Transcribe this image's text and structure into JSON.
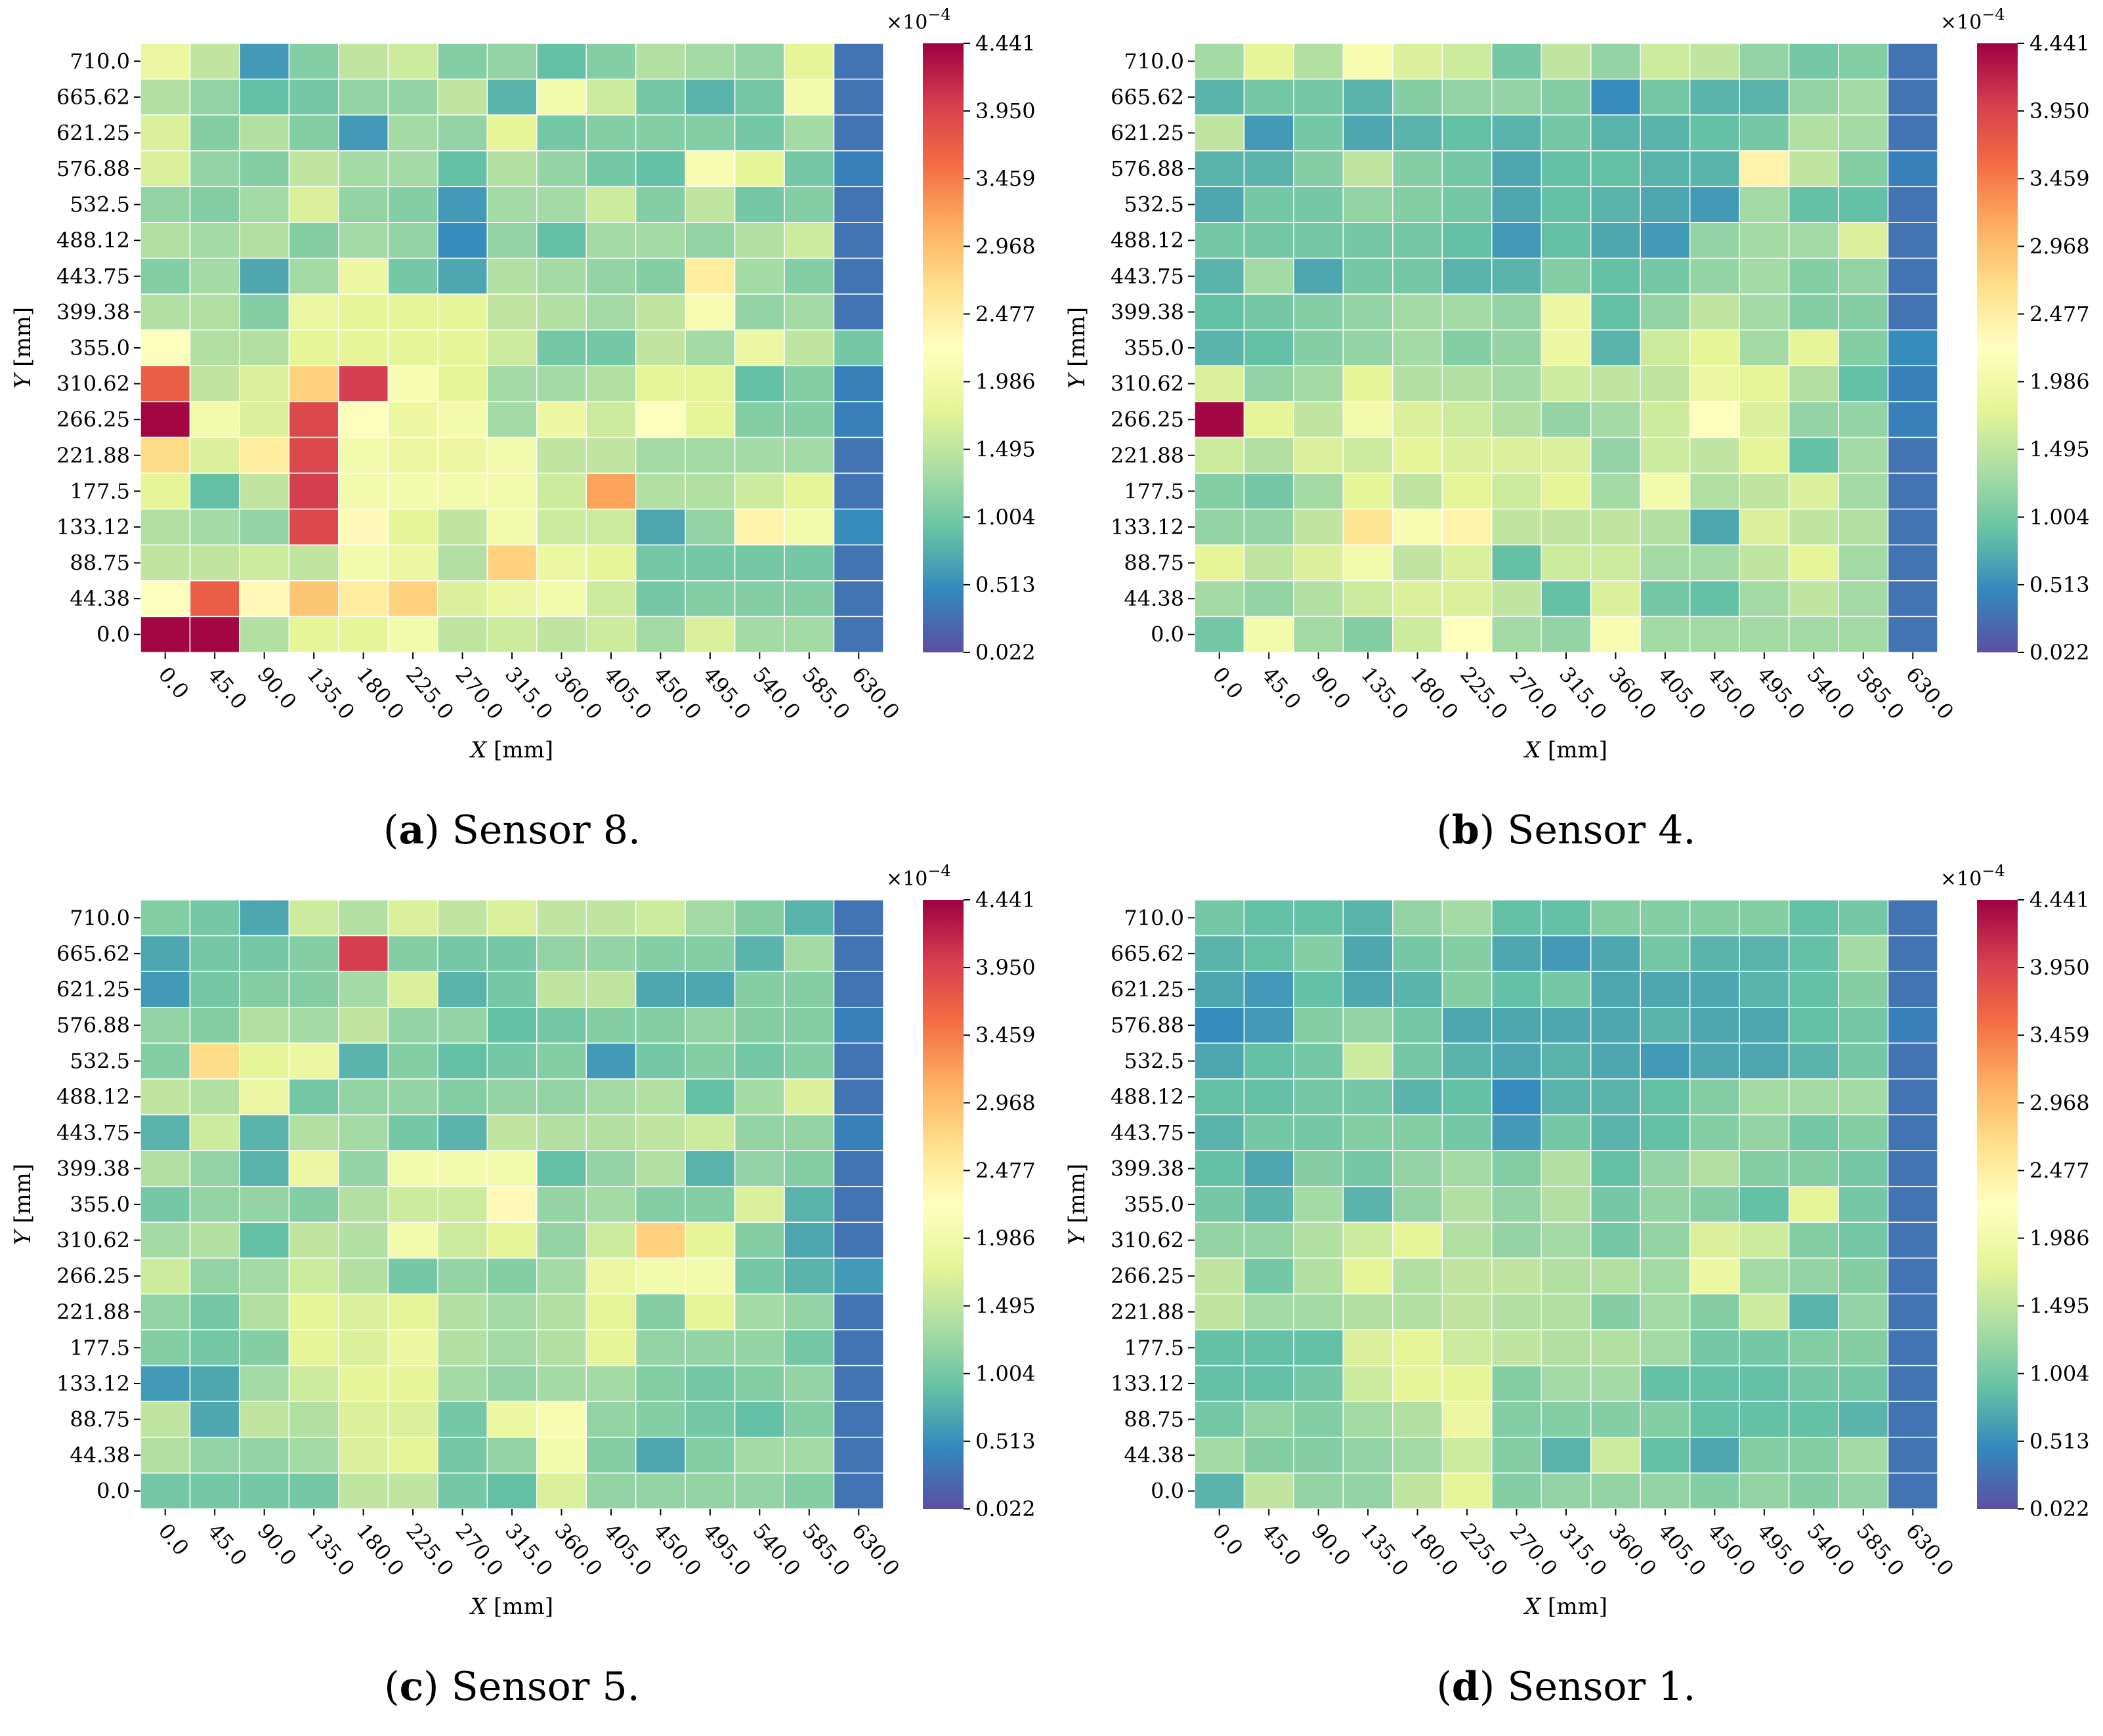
{
  "shared": {
    "x_ticks": [
      "0.0",
      "45.0",
      "90.0",
      "135.0",
      "180.0",
      "225.0",
      "270.0",
      "315.0",
      "360.0",
      "405.0",
      "450.0",
      "495.0",
      "540.0",
      "585.0",
      "630.0"
    ],
    "y_ticks": [
      "710.0",
      "665.62",
      "621.25",
      "576.88",
      "532.5",
      "488.12",
      "443.75",
      "399.38",
      "355.0",
      "310.62",
      "266.25",
      "221.88",
      "177.5",
      "133.12",
      "88.75",
      "44.38",
      "0.0"
    ],
    "xlabel_var": "X",
    "xlabel_unit": "[mm]",
    "ylabel_var": "Y",
    "ylabel_unit": "[mm]",
    "colorbar_exponent": "×10",
    "colorbar_exponent_power": "−4",
    "colorbar_ticks": [
      "4.441",
      "3.950",
      "3.459",
      "2.968",
      "2.477",
      "1.986",
      "1.495",
      "1.004",
      "0.513",
      "0.022"
    ],
    "colorbar_min": 0.022,
    "colorbar_max": 4.441,
    "colormap": "Spectral"
  },
  "chart_data": [
    {
      "type": "heatmap",
      "panel_letter": "(a)",
      "title": "Sensor 8.",
      "value_scale": "1e-4",
      "rows_top_to_bottom": [
        [
          1.9,
          1.5,
          0.6,
          1.1,
          1.5,
          1.6,
          1.1,
          1.2,
          0.9,
          1.1,
          1.4,
          1.3,
          1.2,
          1.8,
          0.3
        ],
        [
          1.4,
          1.2,
          0.9,
          1.0,
          1.2,
          1.2,
          1.5,
          0.8,
          2.0,
          1.6,
          1.0,
          0.8,
          1.0,
          2.0,
          0.3
        ],
        [
          1.7,
          1.1,
          1.4,
          1.1,
          0.6,
          1.3,
          1.2,
          1.8,
          1.0,
          1.1,
          1.1,
          1.1,
          1.0,
          1.3,
          0.3
        ],
        [
          1.7,
          1.2,
          1.1,
          1.5,
          1.3,
          1.3,
          0.9,
          1.4,
          1.2,
          1.0,
          0.9,
          2.1,
          1.8,
          1.0,
          0.4
        ],
        [
          1.2,
          1.1,
          1.3,
          1.7,
          1.2,
          1.1,
          0.6,
          1.3,
          1.3,
          1.6,
          1.1,
          1.5,
          1.0,
          1.1,
          0.3
        ],
        [
          1.4,
          1.3,
          1.4,
          1.1,
          1.3,
          1.2,
          0.5,
          1.2,
          0.9,
          1.3,
          1.3,
          1.2,
          1.4,
          1.6,
          0.3
        ],
        [
          1.1,
          1.3,
          0.7,
          1.3,
          1.9,
          1.0,
          0.7,
          1.4,
          1.3,
          1.2,
          1.1,
          2.5,
          1.3,
          1.1,
          0.3
        ],
        [
          1.4,
          1.4,
          1.1,
          1.9,
          1.8,
          1.8,
          1.8,
          1.5,
          1.4,
          1.3,
          1.5,
          2.1,
          1.2,
          1.3,
          0.3
        ],
        [
          2.2,
          1.4,
          1.4,
          1.8,
          1.8,
          1.8,
          1.8,
          1.6,
          1.0,
          1.0,
          1.5,
          1.3,
          1.9,
          1.5,
          1.0
        ],
        [
          3.7,
          1.5,
          1.7,
          2.8,
          4.0,
          2.1,
          1.8,
          1.3,
          1.3,
          1.4,
          1.8,
          1.8,
          0.9,
          1.1,
          0.4
        ],
        [
          4.4,
          2.0,
          1.7,
          3.9,
          2.2,
          1.9,
          2.0,
          1.3,
          1.9,
          1.6,
          2.2,
          1.8,
          1.1,
          1.1,
          0.4
        ],
        [
          2.7,
          1.7,
          2.5,
          3.9,
          2.0,
          1.9,
          1.9,
          2.0,
          1.5,
          1.5,
          1.3,
          1.3,
          1.3,
          1.3,
          0.3
        ],
        [
          1.8,
          0.9,
          1.5,
          4.0,
          2.0,
          2.0,
          2.0,
          2.0,
          1.6,
          3.2,
          1.4,
          1.4,
          1.6,
          1.8,
          0.3
        ],
        [
          1.4,
          1.3,
          1.2,
          3.9,
          2.3,
          1.8,
          1.5,
          2.0,
          1.6,
          1.6,
          0.7,
          1.2,
          2.4,
          2.0,
          0.5
        ],
        [
          1.5,
          1.5,
          1.6,
          1.5,
          2.0,
          1.9,
          1.4,
          2.8,
          1.9,
          1.8,
          1.0,
          1.0,
          1.0,
          1.0,
          0.3
        ],
        [
          2.2,
          3.7,
          2.3,
          2.9,
          2.5,
          2.8,
          1.7,
          1.9,
          2.0,
          1.6,
          1.0,
          1.1,
          1.1,
          1.1,
          0.3
        ],
        [
          4.4,
          4.4,
          1.4,
          1.8,
          1.8,
          2.0,
          1.5,
          1.6,
          1.5,
          1.6,
          1.3,
          1.7,
          1.3,
          1.3,
          0.3
        ]
      ]
    },
    {
      "type": "heatmap",
      "panel_letter": "(b)",
      "title": "Sensor 4.",
      "value_scale": "1e-4",
      "rows_top_to_bottom": [
        [
          1.3,
          1.8,
          1.4,
          2.1,
          1.7,
          1.6,
          1.0,
          1.5,
          1.2,
          1.6,
          1.5,
          1.2,
          1.0,
          1.1,
          0.3
        ],
        [
          0.8,
          1.0,
          1.0,
          0.8,
          1.1,
          1.2,
          1.2,
          1.1,
          0.5,
          1.0,
          0.8,
          0.8,
          1.2,
          1.3,
          0.3
        ],
        [
          1.5,
          0.6,
          1.0,
          0.7,
          0.8,
          0.9,
          0.8,
          1.0,
          0.8,
          0.8,
          0.9,
          1.0,
          1.4,
          1.3,
          0.3
        ],
        [
          0.8,
          0.8,
          1.1,
          1.5,
          1.1,
          1.0,
          0.7,
          0.9,
          0.9,
          0.8,
          0.8,
          2.4,
          1.5,
          1.1,
          0.4
        ],
        [
          0.7,
          1.0,
          1.0,
          1.2,
          1.1,
          1.0,
          0.7,
          0.9,
          0.8,
          0.7,
          0.6,
          1.3,
          0.9,
          0.9,
          0.3
        ],
        [
          1.0,
          1.0,
          1.0,
          1.0,
          1.0,
          0.9,
          0.6,
          0.9,
          0.7,
          0.6,
          1.2,
          1.3,
          1.3,
          1.7,
          0.3
        ],
        [
          0.8,
          1.3,
          0.7,
          1.0,
          1.0,
          0.8,
          0.8,
          1.1,
          0.9,
          1.0,
          1.2,
          1.3,
          1.1,
          1.2,
          0.3
        ],
        [
          0.9,
          1.0,
          1.1,
          1.2,
          1.3,
          1.3,
          1.2,
          1.9,
          0.9,
          1.2,
          1.5,
          1.3,
          1.1,
          1.1,
          0.3
        ],
        [
          0.8,
          0.9,
          1.1,
          1.2,
          1.3,
          1.1,
          1.2,
          1.9,
          0.8,
          1.6,
          1.8,
          1.3,
          1.8,
          1.1,
          0.5
        ],
        [
          1.7,
          1.2,
          1.3,
          1.8,
          1.4,
          1.4,
          1.3,
          1.6,
          1.5,
          1.5,
          1.9,
          1.8,
          1.4,
          0.9,
          0.4
        ],
        [
          4.4,
          1.8,
          1.5,
          2.0,
          1.7,
          1.6,
          1.4,
          1.2,
          1.3,
          1.6,
          2.2,
          1.7,
          1.2,
          1.2,
          0.4
        ],
        [
          1.6,
          1.4,
          1.7,
          1.6,
          1.8,
          1.7,
          1.7,
          1.7,
          1.2,
          1.6,
          1.5,
          1.8,
          0.9,
          1.3,
          0.3
        ],
        [
          1.1,
          1.0,
          1.3,
          1.8,
          1.5,
          1.8,
          1.6,
          1.8,
          1.3,
          2.0,
          1.4,
          1.5,
          1.7,
          1.3,
          0.3
        ],
        [
          1.2,
          1.2,
          1.5,
          2.6,
          2.1,
          2.4,
          1.5,
          1.5,
          1.5,
          1.4,
          0.7,
          1.7,
          1.5,
          1.4,
          0.3
        ],
        [
          1.8,
          1.5,
          1.7,
          2.0,
          1.5,
          1.7,
          0.9,
          1.6,
          1.6,
          1.3,
          1.3,
          1.5,
          1.8,
          1.3,
          0.3
        ],
        [
          1.3,
          1.2,
          1.4,
          1.6,
          1.7,
          1.7,
          1.5,
          0.9,
          1.7,
          1.0,
          0.9,
          1.3,
          1.5,
          1.3,
          0.3
        ],
        [
          1.0,
          2.0,
          1.3,
          1.1,
          1.6,
          2.2,
          1.3,
          1.2,
          2.1,
          1.3,
          1.3,
          1.3,
          1.3,
          1.3,
          0.3
        ]
      ]
    },
    {
      "type": "heatmap",
      "panel_letter": "(c)",
      "title": "Sensor 5.",
      "value_scale": "1e-4",
      "rows_top_to_bottom": [
        [
          1.1,
          1.0,
          0.7,
          1.6,
          1.4,
          1.7,
          1.5,
          1.7,
          1.5,
          1.5,
          1.6,
          1.3,
          1.1,
          0.8,
          0.3
        ],
        [
          0.7,
          1.0,
          1.0,
          1.1,
          4.0,
          1.1,
          1.0,
          1.0,
          1.2,
          1.2,
          1.1,
          1.1,
          0.8,
          1.3,
          0.3
        ],
        [
          0.6,
          1.0,
          1.1,
          1.1,
          1.3,
          1.7,
          0.8,
          1.0,
          1.5,
          1.5,
          0.7,
          0.7,
          1.1,
          1.1,
          0.3
        ],
        [
          1.2,
          1.1,
          1.4,
          1.3,
          1.5,
          1.2,
          1.2,
          0.9,
          1.0,
          1.1,
          1.1,
          1.2,
          1.1,
          1.1,
          0.4
        ],
        [
          1.1,
          2.7,
          1.8,
          1.9,
          0.8,
          1.1,
          0.9,
          1.0,
          1.1,
          0.6,
          1.0,
          1.1,
          1.0,
          1.1,
          0.3
        ],
        [
          1.5,
          1.4,
          1.9,
          1.0,
          1.2,
          1.2,
          1.1,
          1.2,
          1.2,
          1.3,
          1.4,
          0.9,
          1.3,
          1.7,
          0.3
        ],
        [
          0.8,
          1.6,
          0.8,
          1.4,
          1.3,
          1.0,
          0.8,
          1.5,
          1.4,
          1.4,
          1.5,
          1.6,
          1.2,
          1.2,
          0.4
        ],
        [
          1.4,
          1.2,
          0.8,
          1.9,
          1.2,
          2.0,
          2.0,
          2.0,
          0.9,
          1.2,
          1.4,
          0.8,
          1.2,
          1.1,
          0.3
        ],
        [
          1.0,
          1.2,
          1.2,
          1.1,
          1.4,
          1.6,
          1.6,
          2.3,
          1.2,
          1.3,
          1.1,
          1.1,
          1.7,
          0.8,
          0.3
        ],
        [
          1.3,
          1.4,
          0.9,
          1.5,
          1.4,
          2.0,
          1.6,
          1.8,
          1.2,
          1.6,
          2.8,
          1.8,
          1.1,
          0.7,
          0.3
        ],
        [
          1.6,
          1.2,
          1.3,
          1.6,
          1.4,
          1.0,
          1.2,
          1.1,
          1.3,
          1.9,
          2.0,
          2.0,
          1.0,
          0.8,
          0.6
        ],
        [
          1.2,
          1.0,
          1.4,
          1.8,
          1.7,
          1.8,
          1.4,
          1.3,
          1.4,
          1.8,
          1.1,
          1.8,
          1.3,
          1.2,
          0.3
        ],
        [
          1.1,
          1.0,
          1.1,
          1.8,
          1.7,
          1.9,
          1.4,
          1.3,
          1.4,
          1.8,
          1.2,
          1.2,
          1.2,
          1.0,
          0.3
        ],
        [
          0.6,
          0.7,
          1.3,
          1.6,
          1.8,
          1.8,
          1.3,
          1.2,
          1.3,
          1.3,
          1.1,
          1.0,
          1.1,
          1.2,
          0.3
        ],
        [
          1.5,
          0.7,
          1.5,
          1.4,
          1.7,
          1.7,
          1.0,
          1.9,
          2.1,
          1.2,
          1.1,
          1.0,
          0.9,
          1.1,
          0.3
        ],
        [
          1.4,
          1.2,
          1.2,
          1.3,
          1.7,
          1.8,
          1.0,
          1.2,
          2.0,
          1.1,
          0.7,
          1.1,
          1.3,
          1.3,
          0.3
        ],
        [
          1.0,
          1.0,
          1.0,
          1.0,
          1.5,
          1.5,
          1.0,
          0.9,
          1.7,
          1.2,
          1.2,
          1.2,
          1.2,
          1.1,
          0.3
        ]
      ]
    },
    {
      "type": "heatmap",
      "panel_letter": "(d)",
      "title": "Sensor 1.",
      "value_scale": "1e-4",
      "rows_top_to_bottom": [
        [
          1.0,
          0.9,
          0.9,
          0.8,
          1.2,
          1.3,
          0.9,
          0.9,
          1.1,
          1.1,
          1.1,
          1.1,
          0.9,
          1.0,
          0.3
        ],
        [
          0.8,
          0.9,
          1.1,
          0.7,
          1.0,
          1.1,
          0.7,
          0.6,
          0.7,
          1.0,
          0.8,
          0.8,
          0.9,
          1.3,
          0.3
        ],
        [
          0.7,
          0.6,
          0.9,
          0.7,
          0.8,
          1.1,
          0.9,
          1.0,
          0.7,
          0.7,
          0.7,
          0.8,
          0.9,
          1.1,
          0.3
        ],
        [
          0.5,
          0.6,
          1.1,
          1.2,
          1.0,
          0.7,
          0.7,
          0.7,
          0.7,
          0.8,
          0.7,
          0.7,
          0.9,
          1.0,
          0.4
        ],
        [
          0.7,
          0.9,
          1.0,
          1.6,
          1.0,
          0.8,
          0.7,
          0.8,
          0.7,
          0.6,
          0.7,
          0.7,
          0.8,
          1.0,
          0.3
        ],
        [
          0.9,
          0.9,
          1.0,
          1.0,
          0.8,
          0.9,
          0.5,
          0.8,
          0.8,
          0.9,
          1.1,
          1.3,
          1.3,
          1.3,
          0.3
        ],
        [
          0.8,
          1.0,
          1.0,
          1.1,
          1.1,
          1.0,
          0.6,
          1.0,
          0.8,
          0.9,
          1.1,
          1.2,
          1.0,
          1.1,
          0.3
        ],
        [
          0.9,
          0.7,
          1.1,
          1.0,
          1.2,
          1.3,
          1.1,
          1.4,
          0.9,
          1.2,
          1.4,
          1.1,
          1.1,
          1.0,
          0.3
        ],
        [
          1.0,
          0.8,
          1.3,
          0.8,
          1.2,
          1.4,
          1.2,
          1.4,
          1.0,
          1.2,
          1.1,
          0.9,
          1.8,
          1.0,
          0.3
        ],
        [
          1.2,
          1.2,
          1.4,
          1.6,
          1.8,
          1.4,
          1.2,
          1.3,
          1.0,
          1.2,
          1.7,
          1.6,
          1.1,
          1.0,
          0.3
        ],
        [
          1.5,
          1.0,
          1.4,
          1.8,
          1.4,
          1.5,
          1.5,
          1.4,
          1.4,
          1.3,
          1.9,
          1.3,
          1.2,
          1.1,
          0.3
        ],
        [
          1.5,
          1.3,
          1.3,
          1.4,
          1.4,
          1.5,
          1.4,
          1.4,
          1.1,
          1.3,
          1.1,
          1.6,
          0.8,
          1.2,
          0.3
        ],
        [
          0.9,
          0.9,
          0.9,
          1.7,
          1.8,
          1.6,
          1.5,
          1.4,
          1.4,
          1.3,
          1.0,
          1.0,
          1.1,
          1.1,
          0.3
        ],
        [
          0.9,
          0.9,
          1.0,
          1.6,
          1.8,
          1.8,
          1.1,
          1.3,
          1.3,
          0.9,
          0.9,
          0.9,
          1.0,
          1.0,
          0.3
        ],
        [
          1.0,
          1.2,
          1.1,
          1.3,
          1.4,
          1.9,
          1.1,
          1.1,
          1.1,
          1.1,
          0.9,
          0.9,
          0.9,
          0.8,
          0.3
        ],
        [
          1.3,
          1.1,
          1.1,
          1.2,
          1.3,
          1.6,
          1.1,
          0.8,
          1.6,
          0.9,
          0.7,
          1.1,
          1.1,
          1.3,
          0.3
        ],
        [
          0.8,
          1.5,
          1.2,
          1.2,
          1.5,
          1.8,
          1.1,
          1.2,
          1.2,
          1.2,
          1.1,
          1.2,
          1.1,
          1.2,
          0.3
        ]
      ]
    }
  ]
}
